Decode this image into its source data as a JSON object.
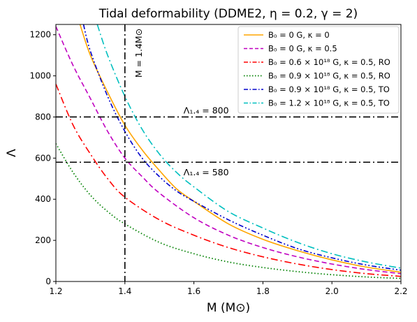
{
  "chart_data": {
    "type": "line",
    "title": "Tidal deformability (DDME2, η = 0.2, γ = 2)",
    "xlabel": "M (M⊙)",
    "ylabel": "Λ",
    "xlim": [
      1.2,
      2.2
    ],
    "ylim": [
      0,
      1250
    ],
    "x_ticks": [
      "1.2",
      "1.4",
      "1.6",
      "1.8",
      "2.0",
      "2.2"
    ],
    "y_ticks": [
      "0",
      "200",
      "400",
      "600",
      "800",
      "1000",
      "1200"
    ],
    "x_tick_values": [
      1.2,
      1.4,
      1.6,
      1.8,
      2.0,
      2.2
    ],
    "y_tick_values": [
      0,
      200,
      400,
      600,
      800,
      1000,
      1200
    ],
    "grid": false,
    "legend_position": "top-right",
    "series": [
      {
        "name": "B₀ = 0 G, κ = 0",
        "color": "#ffa500",
        "dash": "solid",
        "x": [
          1.27,
          1.3,
          1.35,
          1.4,
          1.45,
          1.5,
          1.55,
          1.6,
          1.7,
          1.8,
          1.9,
          2.0,
          2.1,
          2.2
        ],
        "y": [
          1250,
          1100,
          920,
          760,
          640,
          540,
          450,
          390,
          280,
          205,
          150,
          105,
          70,
          45
        ]
      },
      {
        "name": "B₀ = 0 G, κ = 0.5",
        "color": "#c000c0",
        "dash": "dashed",
        "x": [
          1.2,
          1.25,
          1.3,
          1.35,
          1.4,
          1.45,
          1.5,
          1.6,
          1.7,
          1.8,
          1.9,
          2.0,
          2.1,
          2.2
        ],
        "y": [
          1240,
          1050,
          890,
          730,
          600,
          510,
          430,
          310,
          225,
          165,
          120,
          85,
          58,
          38
        ]
      },
      {
        "name": "B₀ = 0.6 × 10¹⁸ G, κ = 0.5, RO",
        "color": "#ff0000",
        "dash": "dashdot",
        "x": [
          1.2,
          1.25,
          1.3,
          1.35,
          1.4,
          1.5,
          1.6,
          1.7,
          1.8,
          1.9,
          2.0,
          2.1,
          2.2
        ],
        "y": [
          960,
          760,
          620,
          500,
          410,
          300,
          225,
          165,
          120,
          85,
          58,
          38,
          25
        ]
      },
      {
        "name": "B₀ = 0.9 × 10¹⁸ G, κ = 0.5, RO",
        "color": "#008000",
        "dash": "dotted",
        "x": [
          1.2,
          1.25,
          1.3,
          1.35,
          1.4,
          1.5,
          1.6,
          1.7,
          1.8,
          1.9,
          2.0,
          2.1,
          2.2
        ],
        "y": [
          670,
          530,
          420,
          340,
          280,
          190,
          135,
          95,
          68,
          48,
          33,
          22,
          15
        ]
      },
      {
        "name": "B₀ = 0.9 × 10¹⁸ G, κ = 0.5, TO",
        "color": "#0000cc",
        "dash": "dashdotdot",
        "x": [
          1.28,
          1.3,
          1.35,
          1.4,
          1.45,
          1.5,
          1.55,
          1.6,
          1.7,
          1.8,
          1.9,
          2.0,
          2.1,
          2.2
        ],
        "y": [
          1250,
          1120,
          900,
          730,
          600,
          510,
          440,
          390,
          300,
          225,
          160,
          115,
          80,
          55
        ]
      },
      {
        "name": "B₀ = 1.2 × 10¹⁸ G, κ = 0.5, TO",
        "color": "#00bfbf",
        "dash": "dashdot",
        "x": [
          1.32,
          1.35,
          1.4,
          1.45,
          1.5,
          1.55,
          1.6,
          1.7,
          1.8,
          1.9,
          2.0,
          2.1,
          2.2
        ],
        "y": [
          1250,
          1100,
          900,
          740,
          620,
          530,
          460,
          340,
          260,
          190,
          135,
          95,
          65
        ]
      }
    ],
    "reference_lines": [
      {
        "orientation": "horizontal",
        "value": 800,
        "label": "Λ₁.₄ = 800"
      },
      {
        "orientation": "horizontal",
        "value": 580,
        "label": "Λ₁.₄ = 580"
      },
      {
        "orientation": "vertical",
        "value": 1.4,
        "label": "M = 1.4M⊙"
      }
    ]
  }
}
